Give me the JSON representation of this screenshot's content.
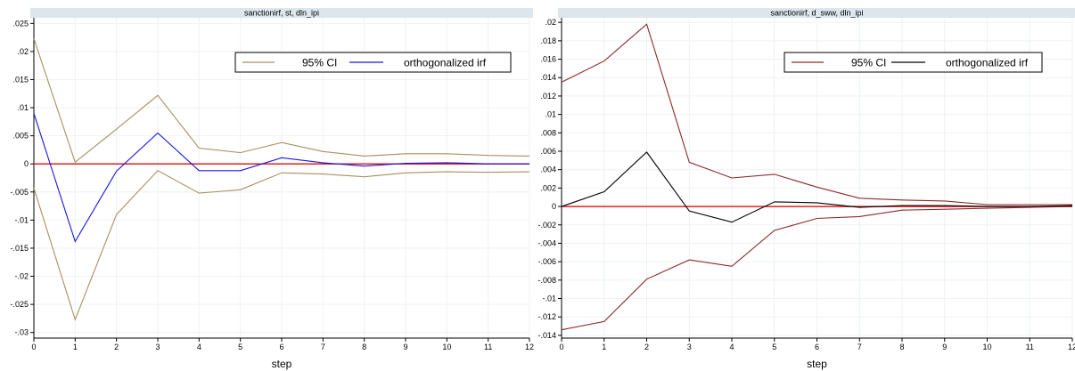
{
  "chart_data": [
    {
      "type": "line",
      "title": "sanctionirf, st, dln_ipi",
      "xlabel": "step",
      "ylabel": "",
      "xlim": [
        0,
        12
      ],
      "ylim": [
        -0.031,
        0.026
      ],
      "x": [
        0,
        1,
        2,
        3,
        4,
        5,
        6,
        7,
        8,
        9,
        10,
        11,
        12
      ],
      "xticks": [
        "0",
        "1",
        "2",
        "3",
        "4",
        "5",
        "6",
        "7",
        "8",
        "9",
        "10",
        "11",
        "12"
      ],
      "yticks": [
        {
          "v": 0.025,
          "label": ".025"
        },
        {
          "v": 0.02,
          "label": ".02"
        },
        {
          "v": 0.015,
          "label": ".015"
        },
        {
          "v": 0.01,
          "label": ".01"
        },
        {
          "v": 0.005,
          "label": ".005"
        },
        {
          "v": 0,
          "label": "0"
        },
        {
          "v": -0.005,
          "label": "-.005"
        },
        {
          "v": -0.01,
          "label": "-.01"
        },
        {
          "v": -0.015,
          "label": "-.015"
        },
        {
          "v": -0.02,
          "label": "-.02"
        },
        {
          "v": -0.025,
          "label": "-.025"
        },
        {
          "v": -0.03,
          "label": "-.03"
        }
      ],
      "grid": true,
      "legend_position": "top-right",
      "zero_line_color": "#e02020",
      "ci_color": "#a89060",
      "irf_color": "#1818e0",
      "series": [
        {
          "name": "95% CI",
          "role": "ci_upper",
          "values": [
            0.0223,
            0.0003,
            0.0062,
            0.0122,
            0.0028,
            0.002,
            0.0038,
            0.0022,
            0.0014,
            0.0018,
            0.0018,
            0.0015,
            0.0014
          ]
        },
        {
          "name": "orthogonalized irf",
          "role": "irf",
          "values": [
            0.009,
            -0.0138,
            -0.0013,
            0.0055,
            -0.0012,
            -0.0012,
            0.0011,
            0.0002,
            -0.0004,
            0.0001,
            0.0002,
            0.0,
            0.0
          ]
        },
        {
          "name": "95% CI",
          "role": "ci_lower",
          "values": [
            -0.0043,
            -0.0277,
            -0.009,
            -0.0012,
            -0.0052,
            -0.0046,
            -0.0016,
            -0.0018,
            -0.0023,
            -0.0016,
            -0.0014,
            -0.0015,
            -0.0014
          ]
        }
      ]
    },
    {
      "type": "line",
      "title": "sanctionirf, d_sww, dln_ipi",
      "xlabel": "step",
      "ylabel": "",
      "xlim": [
        0,
        12
      ],
      "ylim": [
        -0.0143,
        0.0205
      ],
      "x": [
        0,
        1,
        2,
        3,
        4,
        5,
        6,
        7,
        8,
        9,
        10,
        11,
        12
      ],
      "xticks": [
        "0",
        "1",
        "2",
        "3",
        "4",
        "5",
        "6",
        "7",
        "8",
        "9",
        "10",
        "11",
        "12"
      ],
      "yticks": [
        {
          "v": 0.02,
          "label": ".02"
        },
        {
          "v": 0.018,
          "label": ".018"
        },
        {
          "v": 0.016,
          "label": ".016"
        },
        {
          "v": 0.014,
          "label": ".014"
        },
        {
          "v": 0.012,
          "label": ".012"
        },
        {
          "v": 0.01,
          "label": ".01"
        },
        {
          "v": 0.008,
          "label": ".008"
        },
        {
          "v": 0.006,
          "label": ".006"
        },
        {
          "v": 0.004,
          "label": ".004"
        },
        {
          "v": 0.002,
          "label": ".002"
        },
        {
          "v": 0,
          "label": "0"
        },
        {
          "v": -0.002,
          "label": "-.002"
        },
        {
          "v": -0.004,
          "label": "-.004"
        },
        {
          "v": -0.006,
          "label": "-.006"
        },
        {
          "v": -0.008,
          "label": "-.008"
        },
        {
          "v": -0.01,
          "label": "-.01"
        },
        {
          "v": -0.012,
          "label": "-.012"
        },
        {
          "v": -0.014,
          "label": "-.014"
        }
      ],
      "grid": true,
      "legend_position": "top-right",
      "zero_line_color": "#e02020",
      "ci_color": "#8b2a2a",
      "irf_color": "#000000",
      "series": [
        {
          "name": "95% CI",
          "role": "ci_upper",
          "values": [
            0.0135,
            0.0158,
            0.0198,
            0.0048,
            0.0031,
            0.0035,
            0.0021,
            0.0009,
            0.0007,
            0.0006,
            0.0002,
            0.0002,
            0.0002
          ]
        },
        {
          "name": "orthogonalized irf",
          "role": "irf",
          "values": [
            0.0,
            0.0016,
            0.0059,
            -0.0005,
            -0.0017,
            0.0005,
            0.0004,
            -0.0001,
            0.0001,
            0.0001,
            0.0,
            0.0,
            0.0001
          ]
        },
        {
          "name": "95% CI",
          "role": "ci_lower",
          "values": [
            -0.0134,
            -0.0125,
            -0.0079,
            -0.0058,
            -0.0065,
            -0.0026,
            -0.0013,
            -0.0011,
            -0.0004,
            -0.0003,
            -0.0002,
            -0.0001,
            0.0
          ]
        }
      ]
    }
  ]
}
